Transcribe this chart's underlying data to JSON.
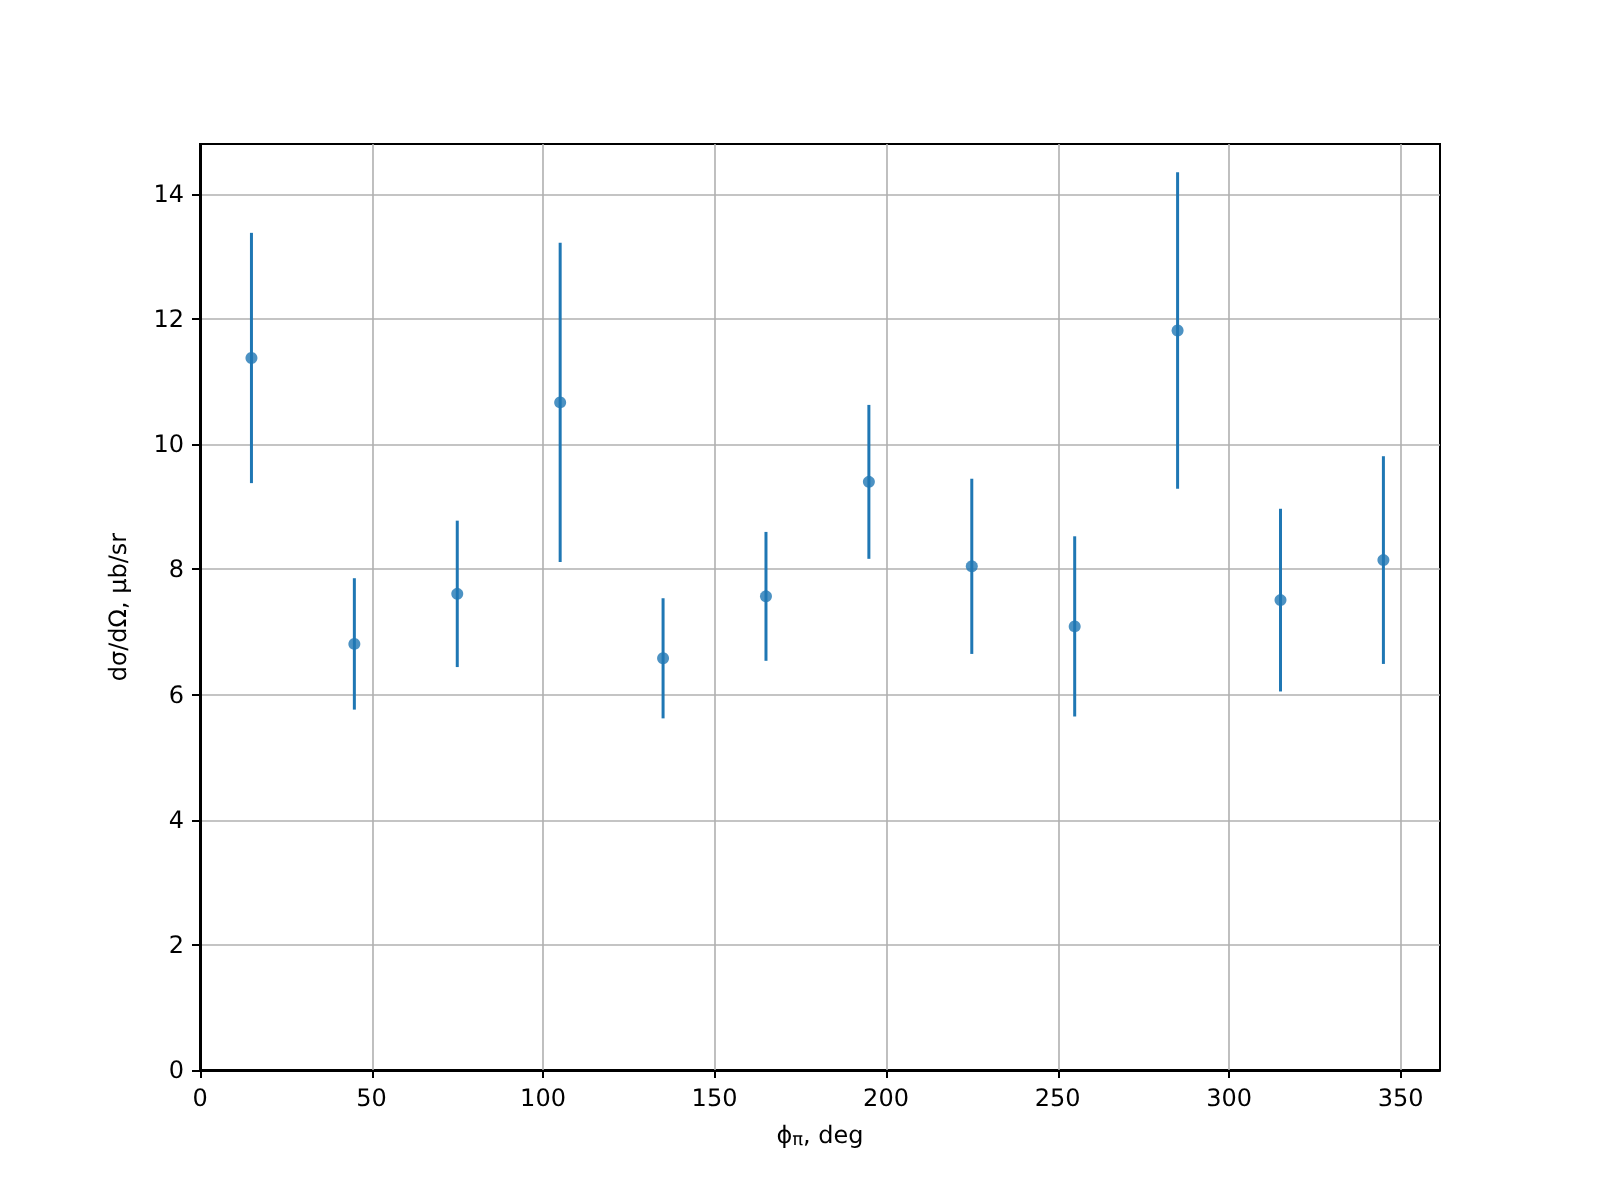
{
  "chart_data": {
    "type": "scatter",
    "xlabel": "ϕ$_{π}$, deg",
    "ylabel": "dσ/dΩ, μb/sr",
    "x": [
      15,
      45,
      75,
      105,
      135,
      165,
      195,
      225,
      255,
      285,
      315,
      345
    ],
    "series": [
      {
        "color": "#1f77b4",
        "values": [
          11.38,
          6.81,
          7.61,
          10.67,
          6.58,
          7.57,
          9.4,
          8.05,
          7.09,
          11.82,
          7.51,
          8.15
        ],
        "errors": [
          2.0,
          1.05,
          1.17,
          2.55,
          0.96,
          1.03,
          1.23,
          1.4,
          1.44,
          2.53,
          1.46,
          1.66
        ]
      }
    ],
    "xlim": [
      0,
      361.5
    ],
    "xticks": [
      0,
      50,
      100,
      150,
      200,
      250,
      300,
      350
    ],
    "ylim": [
      0,
      14.8
    ],
    "yticks": [
      0,
      2,
      4,
      6,
      8,
      10,
      12,
      14
    ],
    "grid": true,
    "marker": "circle"
  }
}
